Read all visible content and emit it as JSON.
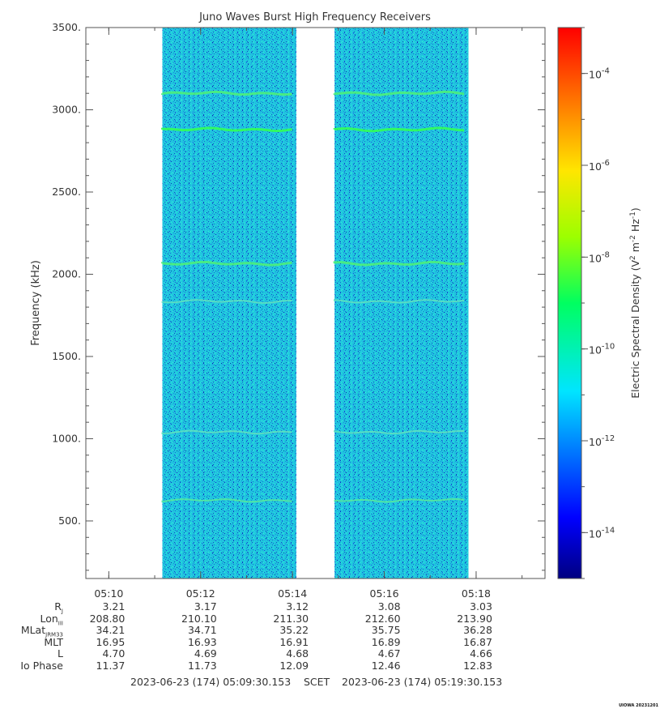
{
  "chart_data": {
    "type": "heatmap",
    "title": "Juno Waves Burst High Frequency Receivers",
    "ylabel": "Frequency (kHz)",
    "colorbar_label_html": "Electric Spectral Density (V<tspan baseline-shift='super' font-size='9'>2</tspan> m<tspan baseline-shift='super' font-size='9'>-2</tspan> Hz<tspan baseline-shift='super' font-size='9'>-1</tspan>)",
    "colorbar_label": "Electric Spectral Density (V2 m-2 Hz-1)",
    "ylim": [
      150,
      3500
    ],
    "y_ticks": [
      500,
      1000,
      1500,
      2000,
      2500,
      3000,
      3500
    ],
    "y_tick_labels": [
      "500.",
      "1000.",
      "1500.",
      "2000.",
      "2500.",
      "3000.",
      "3500."
    ],
    "x_range_minutes": [
      "05:09:30",
      "05:19:30"
    ],
    "x_ticks": [
      "05:10",
      "05:12",
      "05:14",
      "05:16",
      "05:18"
    ],
    "colorbar_range_log10": [
      -15,
      -3
    ],
    "colorbar_ticks": [
      {
        "exp": "-4",
        "value": -4
      },
      {
        "exp": "-6",
        "value": -6
      },
      {
        "exp": "-8",
        "value": -8
      },
      {
        "exp": "-10",
        "value": -10
      },
      {
        "exp": "-12",
        "value": -12
      },
      {
        "exp": "-14",
        "value": -14
      }
    ],
    "data_intervals": [
      {
        "start": "05:11:10",
        "end": "05:14:05"
      },
      {
        "start": "05:14:55",
        "end": "05:17:50"
      }
    ],
    "background_log10_density": -12,
    "emission_lines_khz": [
      {
        "freq": 3100,
        "log10_density": -10.8
      },
      {
        "freq": 2880,
        "log10_density": -10.2
      },
      {
        "freq": 2065,
        "log10_density": -10.6
      },
      {
        "freq": 1835,
        "log10_density": -11.4
      },
      {
        "freq": 1040,
        "log10_density": -11.6
      },
      {
        "freq": 625,
        "log10_density": -11.2
      }
    ],
    "ephemeris": {
      "rows": [
        {
          "label_main": "R",
          "label_sub": "J",
          "values": [
            "3.21",
            "3.17",
            "3.12",
            "3.08",
            "3.03"
          ]
        },
        {
          "label_main": "Lon",
          "label_sub": "III",
          "values": [
            "208.80",
            "210.10",
            "211.30",
            "212.60",
            "213.90"
          ]
        },
        {
          "label_main": "MLat",
          "label_sub": "JRM33",
          "values": [
            "34.21",
            "34.71",
            "35.22",
            "35.75",
            "36.28"
          ]
        },
        {
          "label_main": "MLT",
          "label_sub": "",
          "values": [
            "16.95",
            "16.93",
            "16.91",
            "16.89",
            "16.87"
          ]
        },
        {
          "label_main": "L",
          "label_sub": "",
          "values": [
            "4.70",
            "4.69",
            "4.68",
            "4.67",
            "4.66"
          ]
        },
        {
          "label_main": "Io Phase",
          "label_sub": "",
          "values": [
            "11.37",
            "11.73",
            "12.09",
            "12.46",
            "12.83"
          ]
        }
      ]
    }
  },
  "footer": {
    "start_time": "2023-06-23 (174) 05:09:30.153",
    "scet": "SCET",
    "end_time": "2023-06-23 (174) 05:19:30.153"
  },
  "stamp": "UIOWA 20231201"
}
